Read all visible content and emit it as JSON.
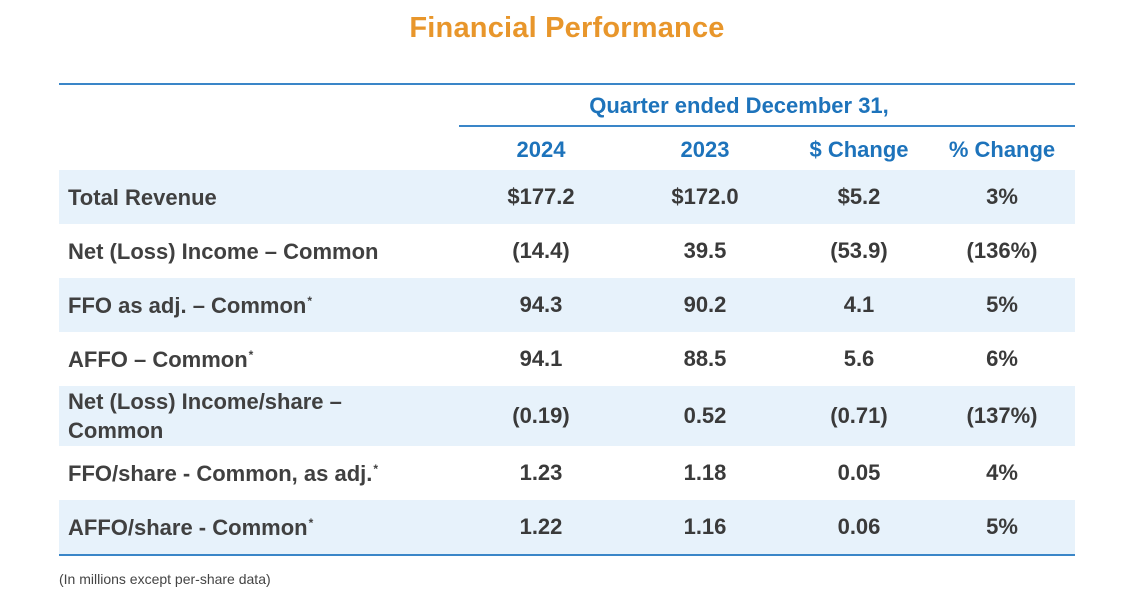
{
  "title": "Financial Performance",
  "table": {
    "group_header": "Quarter ended December 31,",
    "columns": [
      "2024",
      "2023",
      "$ Change",
      "% Change"
    ],
    "rows": [
      {
        "label": "Total Revenue",
        "footnote_mark": "",
        "values": [
          "$177.2",
          "$172.0",
          "$5.2",
          "3%"
        ],
        "shaded": true
      },
      {
        "label": "Net (Loss) Income – Common",
        "footnote_mark": "",
        "values": [
          "(14.4)",
          "39.5",
          "(53.9)",
          "(136%)"
        ],
        "shaded": false
      },
      {
        "label": "FFO as adj. – Common",
        "footnote_mark": "*",
        "values": [
          "94.3",
          "90.2",
          "4.1",
          "5%"
        ],
        "shaded": true
      },
      {
        "label": "AFFO – Common",
        "footnote_mark": "*",
        "values": [
          "94.1",
          "88.5",
          "5.6",
          "6%"
        ],
        "shaded": false
      },
      {
        "label": "Net (Loss) Income/share – Common",
        "footnote_mark": "",
        "values": [
          "(0.19)",
          "0.52",
          "(0.71)",
          "(137%)"
        ],
        "shaded": true
      },
      {
        "label": "FFO/share - Common, as adj.",
        "footnote_mark": "*",
        "values": [
          "1.23",
          "1.18",
          "0.05",
          "4%"
        ],
        "shaded": false
      },
      {
        "label": "AFFO/share - Common",
        "footnote_mark": "*",
        "values": [
          "1.22",
          "1.16",
          "0.06",
          "5%"
        ],
        "shaded": true
      }
    ]
  },
  "footnote": "(In millions except per-share data)",
  "colors": {
    "title": "#e8962b",
    "header": "#1d73bb",
    "rule": "#3a86c8",
    "row_shade": "#e7f2fb"
  }
}
